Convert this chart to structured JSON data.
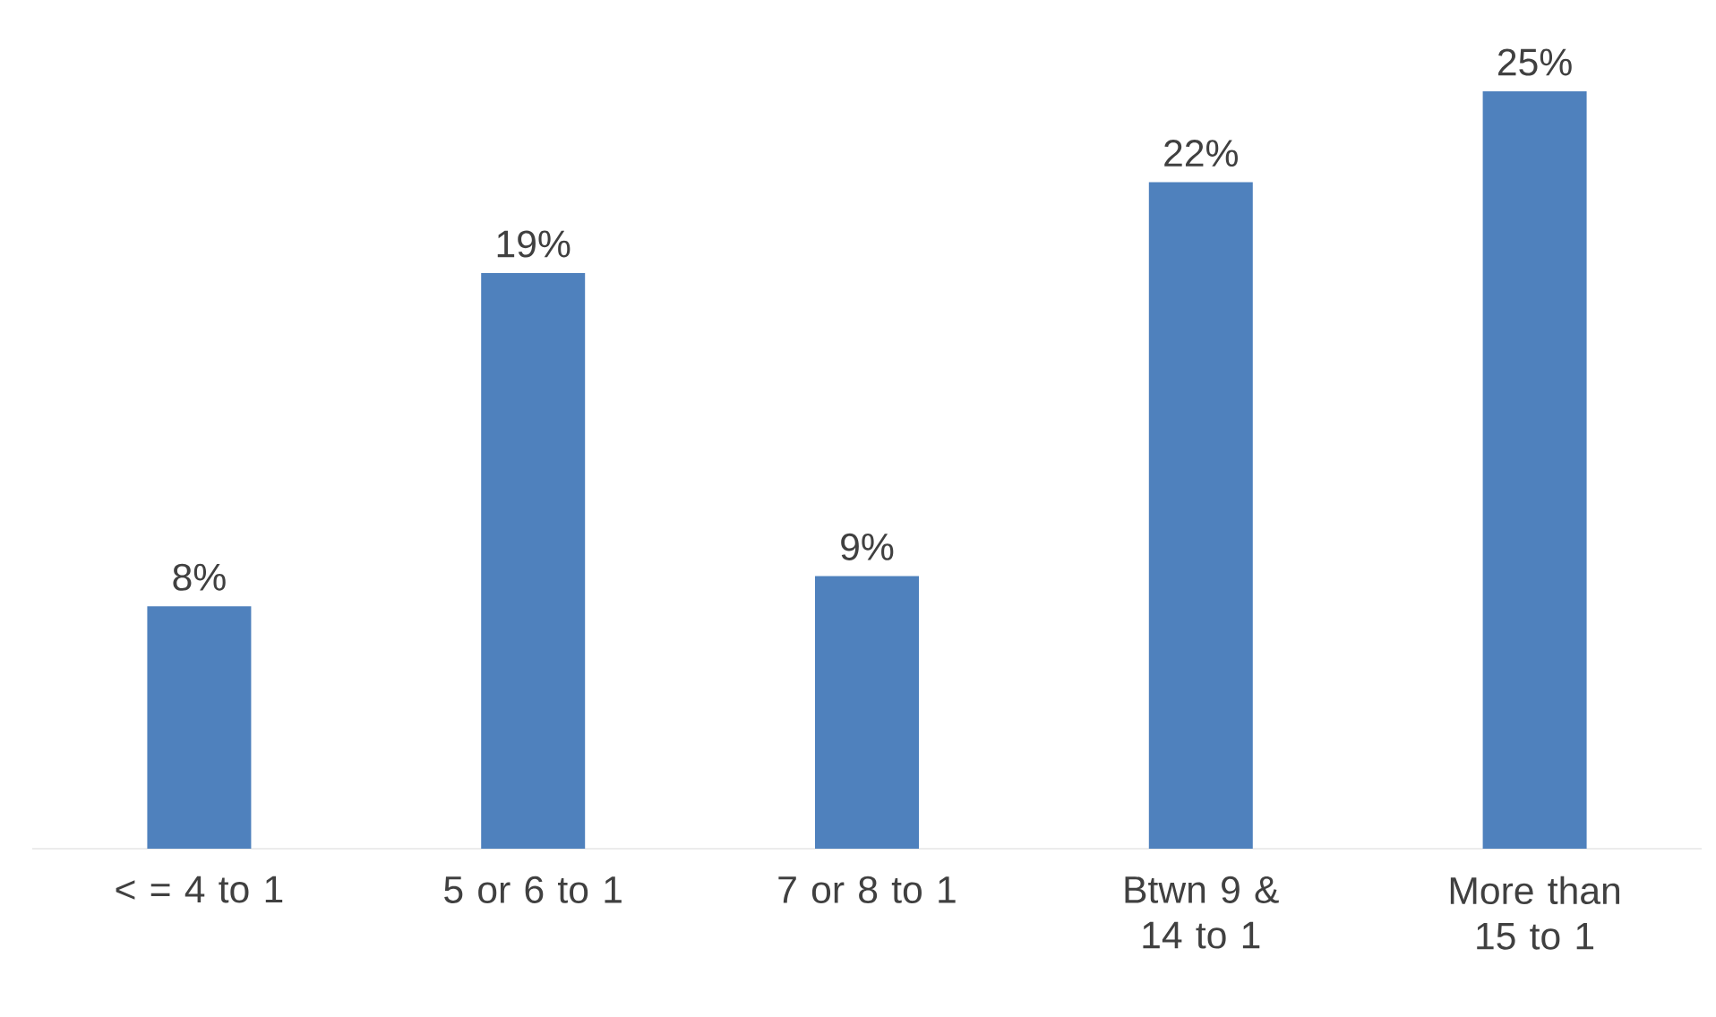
{
  "chart_data": {
    "type": "bar",
    "categories": [
      "< = 4 to 1",
      "5 or 6 to 1",
      "7 or 8 to 1",
      "Btwn 9 & 14 to 1",
      "More than 15 to 1"
    ],
    "values": [
      8,
      19,
      9,
      22,
      25
    ],
    "value_labels": [
      "8%",
      "19%",
      "9%",
      "22%",
      "25%"
    ],
    "color": "#4f81bd"
  }
}
